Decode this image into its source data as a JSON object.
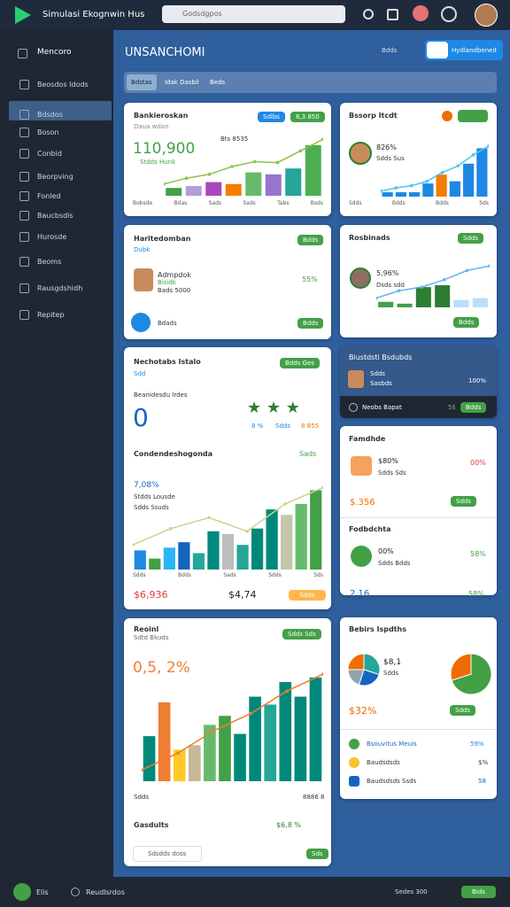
{
  "topbar": {
    "title": "Simulasi Ekognwin Hus",
    "search": "Godsdgpos"
  },
  "sidebar": {
    "title": "Mencoro",
    "items": [
      "Beosdos Idods",
      "Bdsdos",
      "Boson",
      "Conbid",
      "Beorpving",
      "Fonled",
      "Baucbsdis",
      "Hurosde",
      "Beoms",
      "Rausgdshidh",
      "Repitep"
    ]
  },
  "header": {
    "title": "UNSANCHOMI",
    "label": "Bdds",
    "button": "Hydlandbeneit",
    "filters": [
      "Bdstas",
      "Idak Dasbil",
      "Beds"
    ]
  },
  "card_a": {
    "title": "Bankieroskan",
    "subtitle": "Daua wdan",
    "pills": [
      "Sdlbs",
      "8,3 850"
    ],
    "big": "110,900",
    "sub": "Stdds Hunk",
    "note": "Bts 8535",
    "axis": [
      "Bobsde",
      "Bdas",
      "Sads",
      "Sads",
      "Tabs",
      "Bsds"
    ],
    "chart": {
      "ylim": [
        0,
        60
      ],
      "values": [
        8,
        10,
        14,
        12,
        24,
        22,
        28,
        52
      ],
      "colors": [
        "#43a047",
        "#b39ddb",
        "#ab47bc",
        "#f57c00",
        "#66bb6a",
        "#9575cd",
        "#26a69a",
        "#4caf50"
      ],
      "line": [
        12,
        18,
        22,
        30,
        35,
        34,
        46,
        58
      ],
      "line_color": "#8bc34a"
    }
  },
  "card_b": {
    "title": "Haritedomban",
    "subtitle": "Dubk",
    "pill": "Bdds",
    "name": "Admpdok",
    "role": "Bisidk",
    "detail": "Bads 5000",
    "pct": "55%",
    "footer": "Bdads",
    "button": "Bdds"
  },
  "card_c": {
    "title": "Nechotabs Istalo",
    "pill": "Bdds Ges",
    "subtitle": "Sdd",
    "label": "Beanidesdu Irdes",
    "big": "0",
    "stars": [
      "8 %",
      "Sdds",
      "8 855"
    ],
    "section": "Condendeshogonda",
    "section_tag": "Sads",
    "pct": "7,08%",
    "sub1": "Stdds Lousde",
    "sub2": "Sdds Ssuds",
    "axis": [
      "Sdds",
      "Bdds",
      "Sads",
      "Sdds",
      "Sds"
    ],
    "v1": "$6,936",
    "v2": "$4,74",
    "pill2": "Sdds",
    "chart": {
      "ylim": [
        0,
        70
      ],
      "values": [
        14,
        8,
        16,
        20,
        12,
        28,
        26,
        18,
        30,
        44,
        40,
        48,
        58
      ],
      "colors": [
        "#1e88e5",
        "#43a047",
        "#29b6f6",
        "#1565c0",
        "#26a69a",
        "#00897b",
        "#bdbdbd",
        "#26a69a",
        "#00897b",
        "#00897b",
        "#c5c7a9",
        "#66bb6a",
        "#43a047"
      ],
      "line": [
        18,
        30,
        38,
        28,
        48,
        60
      ],
      "line_color": "#d4d08a"
    }
  },
  "card_d": {
    "title": "Reoinl",
    "subtitle": "Sdtd Bkuds",
    "pill": "Sdds Sds",
    "big": "0,5, 2%",
    "axis_left": "Sdds",
    "axis_right": "8886 8",
    "footer": "Gasdults",
    "footer_value": "$6,8 %",
    "search": "Sdsdds doss",
    "button": "Sds",
    "chart": {
      "ylim": [
        0,
        110
      ],
      "values": [
        40,
        70,
        28,
        32,
        50,
        58,
        42,
        75,
        68,
        88,
        75,
        92
      ],
      "colors": [
        "#00897b",
        "#ef7d32",
        "#ffca28",
        "#c8b89a",
        "#66bb6a",
        "#43a047",
        "#00897b",
        "#00897b",
        "#26a69a",
        "#00897b",
        "#00897b",
        "#00897b"
      ],
      "line": [
        10,
        25,
        45,
        60,
        80,
        95
      ],
      "line_color": "#ef7d32"
    }
  },
  "card_e": {
    "title": "Bssorp Itcdt",
    "pct": "826%",
    "sub": "Sdds Sus",
    "axis": [
      "Sdds",
      "Bdds",
      "Bdds",
      "Sds"
    ],
    "chart": {
      "ylim": [
        0,
        50
      ],
      "values": [
        4,
        4,
        4,
        12,
        20,
        14,
        30,
        44
      ],
      "colors": [
        "#1e88e5",
        "#1e88e5",
        "#1e88e5",
        "#1e88e5",
        "#f57c00",
        "#1e88e5",
        "#1e88e5",
        "#1e88e5"
      ],
      "line": [
        5,
        8,
        10,
        14,
        22,
        28,
        38,
        46
      ],
      "line_color": "#4fc3f7"
    }
  },
  "card_f": {
    "title": "Rosbinads",
    "pill": "Sdds",
    "pct": "5,96%",
    "sub": "Dsds sdd",
    "button": "Bdds",
    "chart": {
      "ylim": [
        0,
        50
      ],
      "values": [
        6,
        4,
        22,
        24,
        8,
        10
      ],
      "colors": [
        "#43a047",
        "#43a047",
        "#2e7d32",
        "#2e7d32",
        "#bbdefb",
        "#bbdefb"
      ],
      "line": [
        10,
        18,
        22,
        30,
        40,
        45
      ],
      "line_color": "#64b5f6"
    }
  },
  "card_g": {
    "title": "Biustdsti Bsdubds",
    "name": "Sdds",
    "role": "Sasbds",
    "pct": "100%",
    "footer": "Neobs Bapat",
    "value": "5$",
    "button": "Bdds"
  },
  "card_h": {
    "title": "Famdhde",
    "pct1": "$80%",
    "sub1": "Sdds Sds",
    "right1": "00%",
    "value1": "$.356",
    "button1": "Sdds",
    "title2": "Fodbdchta",
    "pct2": "00%",
    "sub2": "Sdds Bdds",
    "right2": "58%",
    "value2": "2,16",
    "right3": "58%"
  },
  "card_i": {
    "title": "Bebirs Ispdths",
    "value": "$8,1",
    "sub": "Sdds",
    "amount": "$32%",
    "button": "Sdds",
    "pie1": {
      "values": [
        30,
        25,
        20,
        25
      ],
      "colors": [
        "#26a69a",
        "#1565c0",
        "#90a4ae",
        "#ef6c00"
      ]
    },
    "pie2": {
      "values": [
        70,
        30
      ],
      "colors": [
        "#43a047",
        "#ef6c00"
      ]
    },
    "list": [
      {
        "name": "Bsouvitus Meuis",
        "value": "59%"
      },
      {
        "name": "Baudsdsds",
        "value": "$%"
      },
      {
        "name": "Baudsdsds Ssds",
        "value": "58"
      }
    ]
  },
  "bottombar": {
    "left": "Elis",
    "item": "Reudlsrdos",
    "right": "Sedes 300",
    "button": "Bids"
  }
}
